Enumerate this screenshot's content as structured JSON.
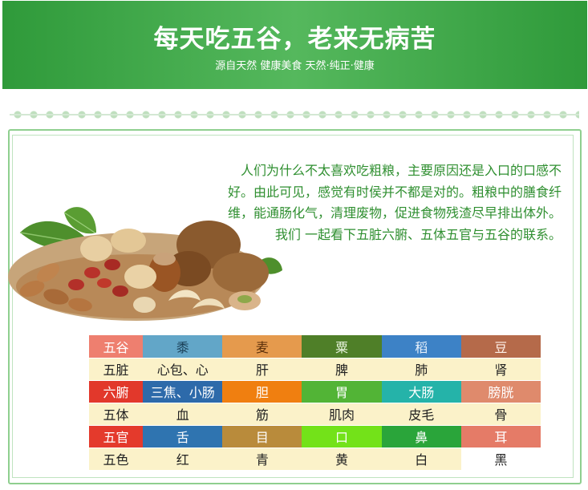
{
  "banner": {
    "title": "每天吃五谷，老来无病苦",
    "subtitle": "源自天然 健康美食   天然·纯正·健康"
  },
  "intro": {
    "text": "人们为什么不太喜欢吃粗粮，主要原因还是入口的口感不好。由此可见，感觉有时侯并不都是对的。粗粮中的膳食纤维，能通肠化气，清理废物，促进食物残渣尽早排出体外。我们 一起看下五脏六腑、五体五官与五谷的联系。"
  },
  "image": {
    "name": "nuts-pile"
  },
  "table": {
    "rows": [
      {
        "label": "五谷",
        "label_bg": "#ee7f6f",
        "label_color": "#ffffff",
        "cells": [
          {
            "text": "黍",
            "bg": "#62a6c8",
            "color": "#1a3f56"
          },
          {
            "text": "麦",
            "bg": "#e59a4d",
            "color": "#5a2f0a"
          },
          {
            "text": "粟",
            "bg": "#4f7f28",
            "color": "#e8f3dd"
          },
          {
            "text": "稻",
            "bg": "#3d82c6",
            "color": "#e6f0fb"
          },
          {
            "text": "豆",
            "bg": "#b56a4a",
            "color": "#fff2ea"
          }
        ]
      },
      {
        "label": "五脏",
        "label_bg": "#fbf2c9",
        "label_color": "#222222",
        "cells": [
          {
            "text": "心包、心",
            "bg": "#fbf2c9",
            "color": "#222222"
          },
          {
            "text": "肝",
            "bg": "#fbf2c9",
            "color": "#222222"
          },
          {
            "text": "脾",
            "bg": "#fbf2c9",
            "color": "#222222"
          },
          {
            "text": "肺",
            "bg": "#fbf2c9",
            "color": "#222222"
          },
          {
            "text": "肾",
            "bg": "#fbf2c9",
            "color": "#222222"
          }
        ]
      },
      {
        "label": "六腑",
        "label_bg": "#e2382b",
        "label_color": "#ffffff",
        "cells": [
          {
            "text": "三焦、小肠",
            "bg": "#2d6aaa",
            "color": "#ffffff"
          },
          {
            "text": "胆",
            "bg": "#f07f10",
            "color": "#ffffff"
          },
          {
            "text": "胃",
            "bg": "#52b436",
            "color": "#ffffff"
          },
          {
            "text": "大肠",
            "bg": "#25b3a9",
            "color": "#ffffff"
          },
          {
            "text": "膀胱",
            "bg": "#df8a6c",
            "color": "#ffffff"
          }
        ]
      },
      {
        "label": "五体",
        "label_bg": "#fbf2c9",
        "label_color": "#222222",
        "cells": [
          {
            "text": "血",
            "bg": "#fbf2c9",
            "color": "#222222"
          },
          {
            "text": "筋",
            "bg": "#fbf2c9",
            "color": "#222222"
          },
          {
            "text": "肌肉",
            "bg": "#fbf2c9",
            "color": "#222222"
          },
          {
            "text": "皮毛",
            "bg": "#fbf2c9",
            "color": "#222222"
          },
          {
            "text": "骨",
            "bg": "#fbf2c9",
            "color": "#222222"
          }
        ]
      },
      {
        "label": "五官",
        "label_bg": "#e43a2c",
        "label_color": "#ffffff",
        "cells": [
          {
            "text": "舌",
            "bg": "#2f74b0",
            "color": "#ffffff"
          },
          {
            "text": "目",
            "bg": "#b98b3b",
            "color": "#ffffff"
          },
          {
            "text": "口",
            "bg": "#73e219",
            "color": "#ffffff"
          },
          {
            "text": "鼻",
            "bg": "#2aa53a",
            "color": "#ffffff"
          },
          {
            "text": "耳",
            "bg": "#e57b67",
            "color": "#ffffff"
          }
        ]
      },
      {
        "label": "五色",
        "label_bg": "#fbf2c9",
        "label_color": "#222222",
        "cells": [
          {
            "text": "红",
            "bg": "#fbf2c9",
            "color": "#222222"
          },
          {
            "text": "青",
            "bg": "#fbf2c9",
            "color": "#222222"
          },
          {
            "text": "黄",
            "bg": "#fbf2c9",
            "color": "#222222"
          },
          {
            "text": "白",
            "bg": "#fbf2c9",
            "color": "#222222"
          },
          {
            "text": "黑",
            "bg": "#ffffff",
            "color": "#222222"
          }
        ]
      }
    ]
  }
}
